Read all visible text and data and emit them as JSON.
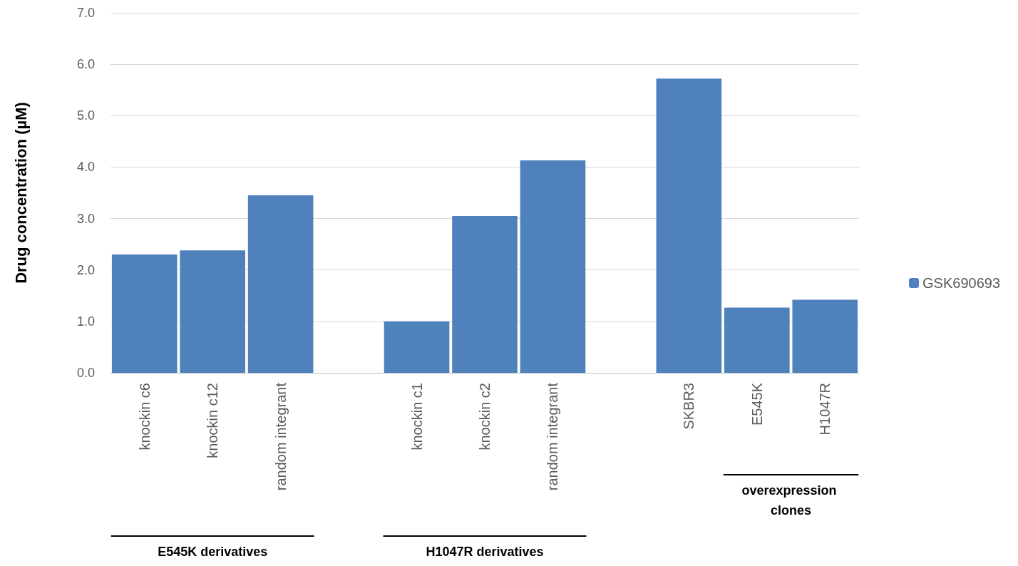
{
  "chart_data": {
    "type": "bar",
    "ylabel": "Drug concentration (µM)",
    "categories": [
      "knockin c6",
      "knockin c12",
      "random integrant",
      null,
      "knockin c1",
      "knockin c2",
      "random integrant",
      null,
      "SKBR3",
      "E545K",
      "H1047R"
    ],
    "series": [
      {
        "name": "GSK690693",
        "color": "#4f81bd",
        "values": [
          2.3,
          2.38,
          3.45,
          null,
          1.0,
          3.05,
          4.13,
          null,
          5.72,
          1.27,
          1.42
        ]
      }
    ],
    "ylim": [
      0,
      7
    ],
    "yticks": [
      {
        "value": 0,
        "label": "0.0"
      },
      {
        "value": 1,
        "label": "1.0"
      },
      {
        "value": 2,
        "label": "2.0"
      },
      {
        "value": 3,
        "label": "3.0"
      },
      {
        "value": 4,
        "label": "4.0"
      },
      {
        "value": 5,
        "label": "5.0"
      },
      {
        "value": 6,
        "label": "6.0"
      },
      {
        "value": 7,
        "label": "7.0"
      }
    ],
    "grid": "y",
    "legend": "right",
    "annotations": [
      "E545K derivatives",
      "H1047R derivatives",
      "overexpression clones"
    ]
  }
}
